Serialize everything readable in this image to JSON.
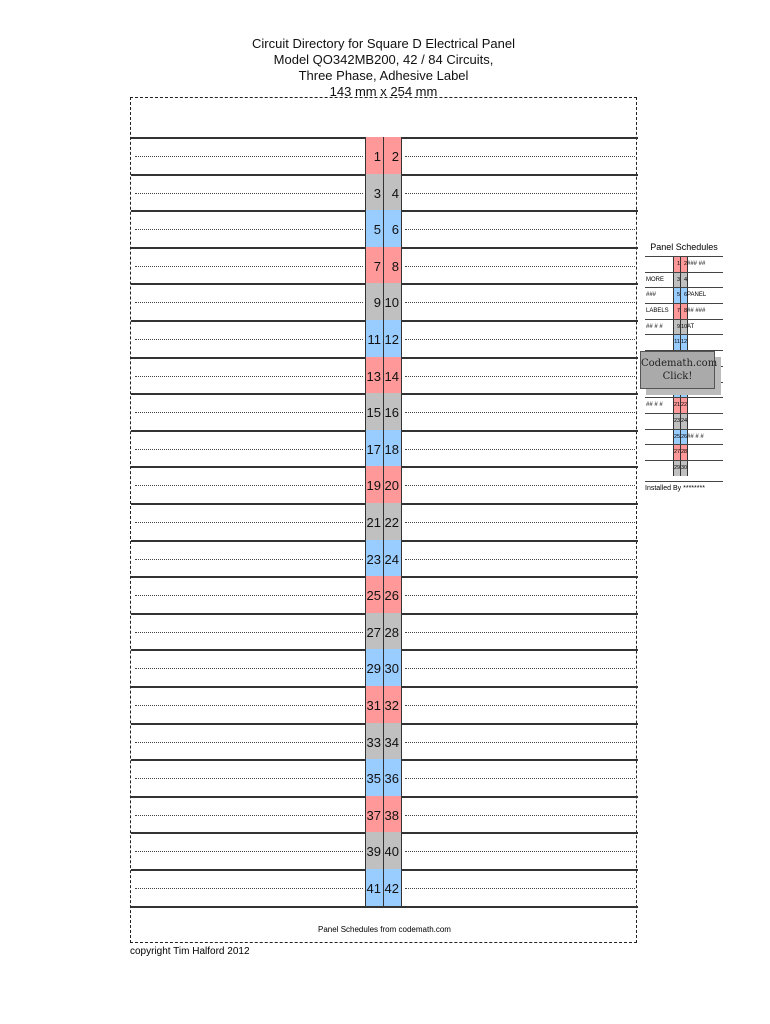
{
  "header": {
    "lines": [
      "Circuit Directory for Square D Electrical Panel",
      "Model QO342MB200, 42 / 84 Circuits,",
      "Three Phase, Adhesive Label",
      "143 mm x 254 mm"
    ]
  },
  "colors": {
    "phase_a": "#ff9999",
    "phase_b": "#c0c0c0",
    "phase_c": "#99ccff"
  },
  "circuits": [
    [
      1,
      2
    ],
    [
      3,
      4
    ],
    [
      5,
      6
    ],
    [
      7,
      8
    ],
    [
      9,
      10
    ],
    [
      11,
      12
    ],
    [
      13,
      14
    ],
    [
      15,
      16
    ],
    [
      17,
      18
    ],
    [
      19,
      20
    ],
    [
      21,
      22
    ],
    [
      23,
      24
    ],
    [
      25,
      26
    ],
    [
      27,
      28
    ],
    [
      29,
      30
    ],
    [
      31,
      32
    ],
    [
      33,
      34
    ],
    [
      35,
      36
    ],
    [
      37,
      38
    ],
    [
      39,
      40
    ],
    [
      41,
      42
    ]
  ],
  "footer": {
    "text": "Panel Schedules from codemath.com",
    "copyright": "copyright Tim Halford 2012"
  },
  "thumbnail": {
    "title": "Panel Schedules",
    "rows": [
      {
        "l": "",
        "a": "1",
        "b": "2",
        "r": "### ##"
      },
      {
        "l": "MORE",
        "a": "3",
        "b": "4",
        "r": ""
      },
      {
        "l": "###",
        "a": "5",
        "b": "6",
        "r": "PANEL"
      },
      {
        "l": "LABELS",
        "a": "7",
        "b": "8",
        "r": "## ###"
      },
      {
        "l": "## # #",
        "a": "9",
        "b": "10",
        "r": "AT"
      },
      {
        "l": "",
        "a": "11",
        "b": "12",
        "r": ""
      },
      {
        "l": "",
        "a": "",
        "b": "",
        "r": ""
      },
      {
        "l": "",
        "a": "",
        "b": "",
        "r": ""
      },
      {
        "l": "",
        "a": "19",
        "b": "20",
        "r": ""
      },
      {
        "l": "## # #",
        "a": "21",
        "b": "22",
        "r": ""
      },
      {
        "l": "",
        "a": "23",
        "b": "24",
        "r": ""
      },
      {
        "l": "",
        "a": "25",
        "b": "26",
        "r": "## # #"
      },
      {
        "l": "",
        "a": "27",
        "b": "28",
        "r": ""
      },
      {
        "l": "",
        "a": "29",
        "b": "30",
        "r": ""
      }
    ],
    "installed": "Installed By ********",
    "ad_line1": "Codemath.com",
    "ad_line2": "Click!"
  }
}
